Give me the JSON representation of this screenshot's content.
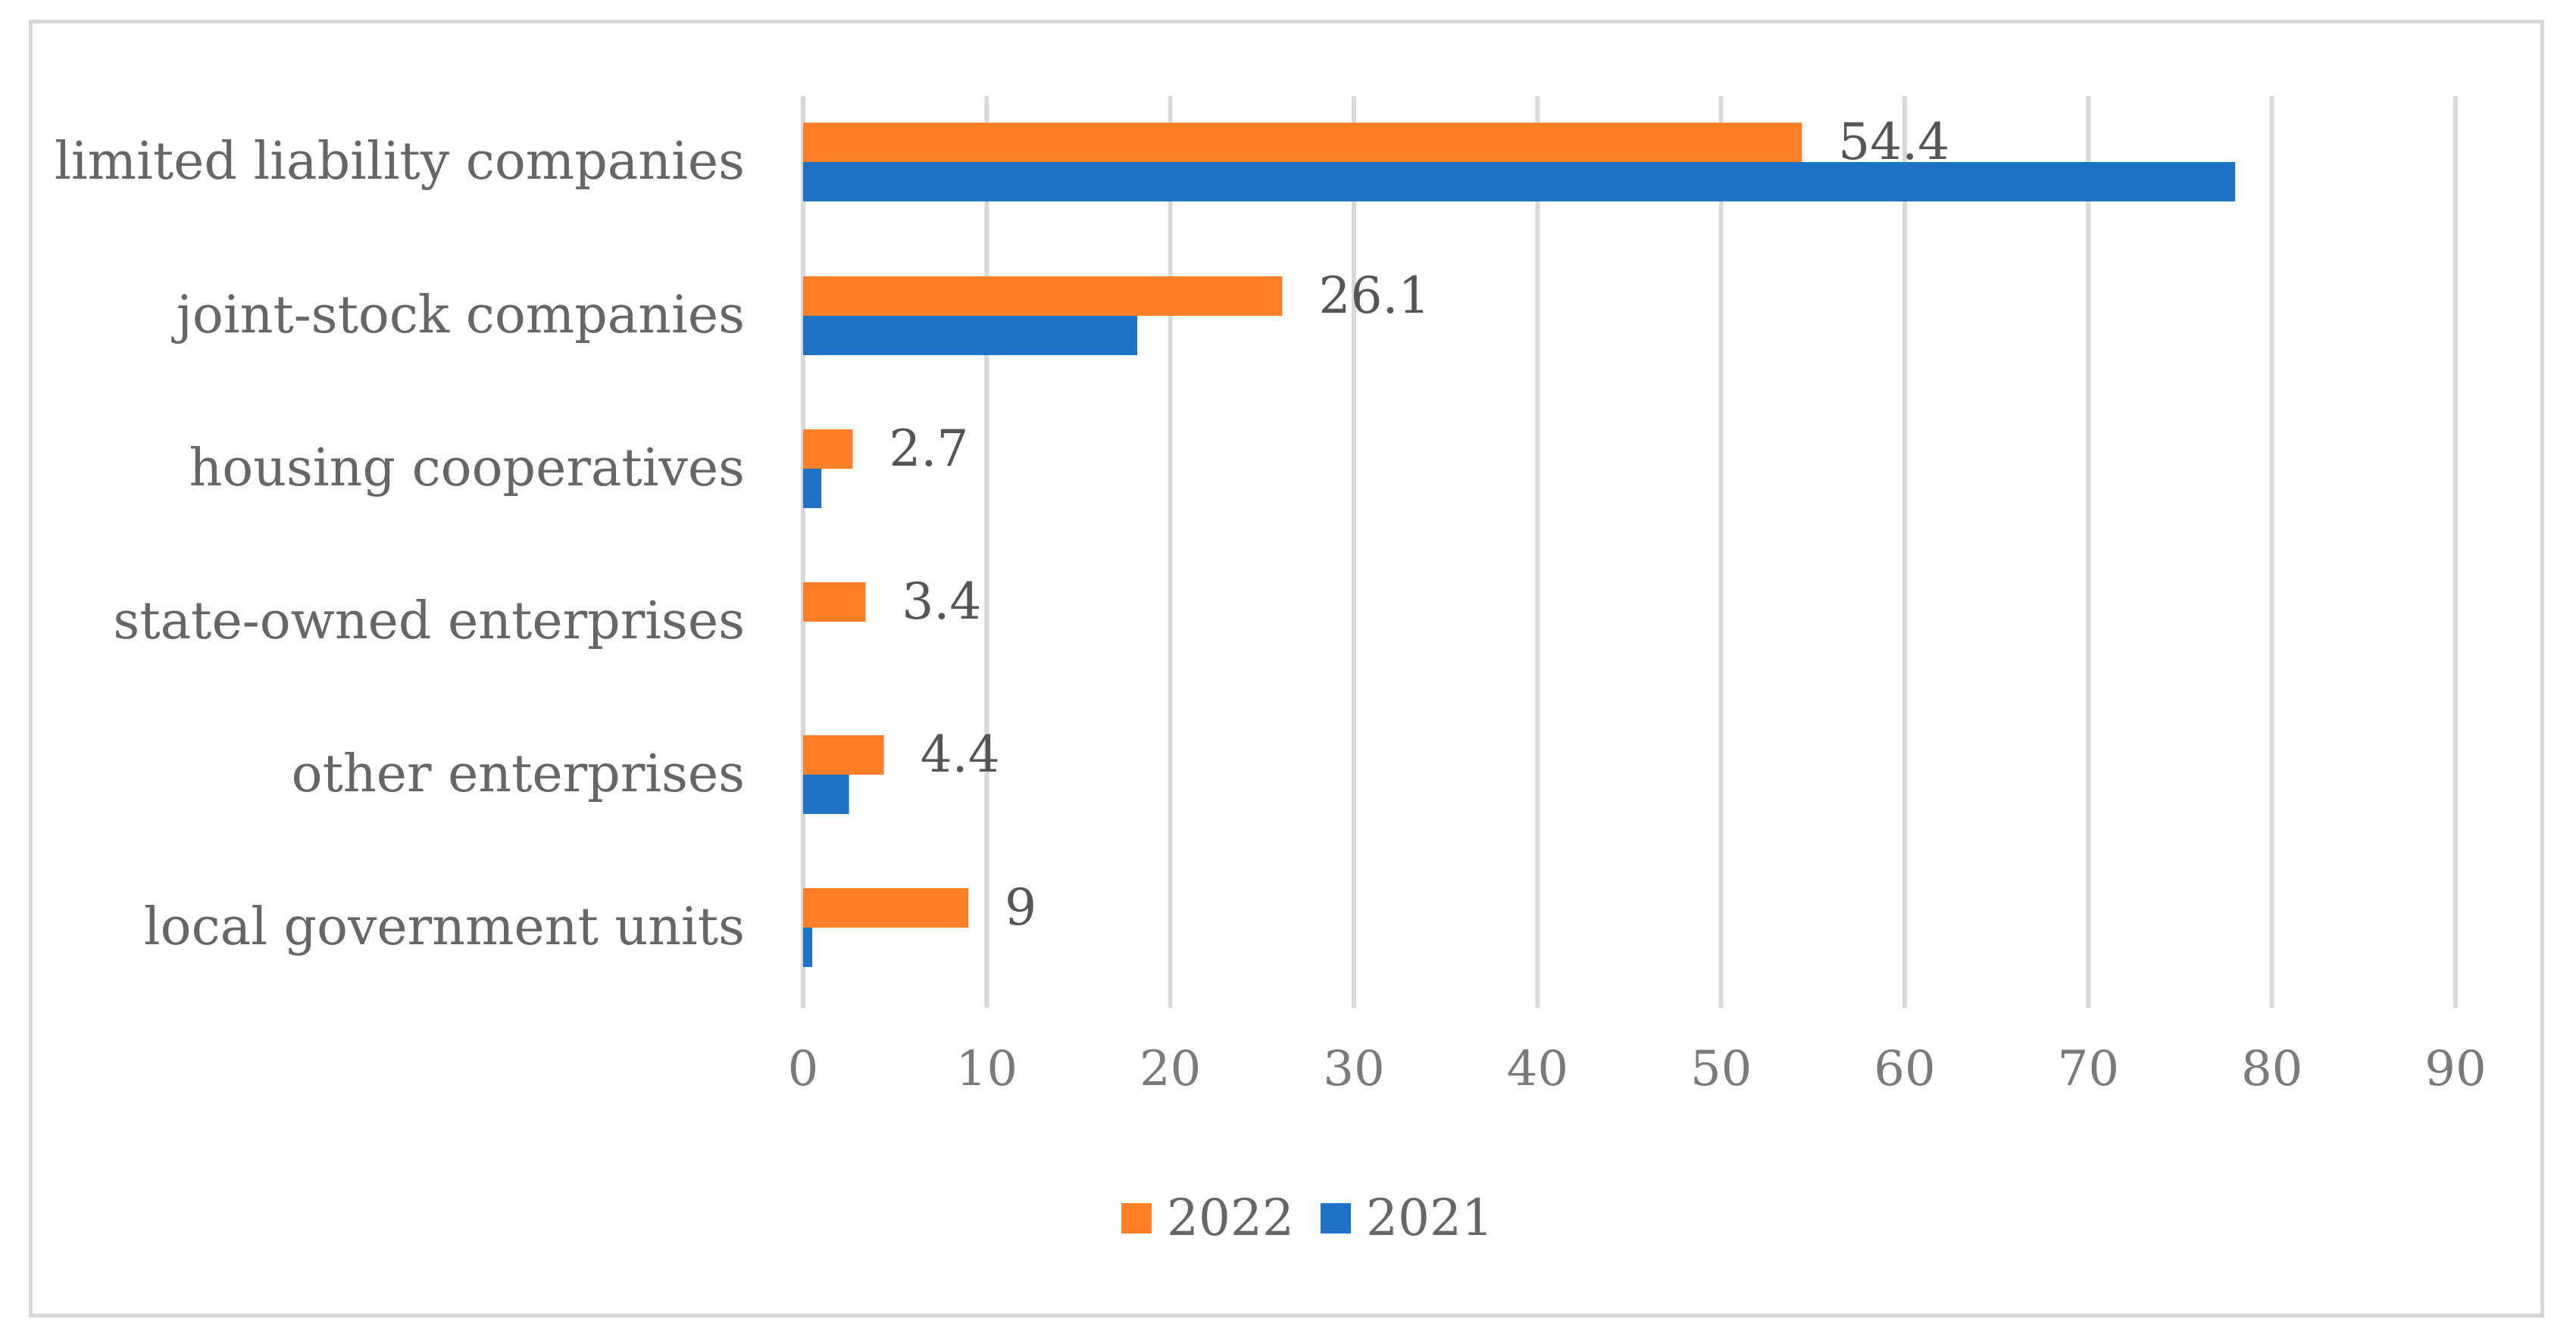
{
  "chart_data": {
    "type": "bar",
    "orientation": "horizontal",
    "title": "",
    "xlabel": "",
    "ylabel": "",
    "xlim": [
      0,
      90
    ],
    "x_ticks": [
      "0",
      "10",
      "20",
      "30",
      "40",
      "50",
      "60",
      "70",
      "80",
      "90"
    ],
    "grid": true,
    "legend_position": "bottom",
    "categories": [
      "limited liability companies",
      "joint-stock companies",
      "housing cooperatives",
      "state-owned enterprises",
      "other enterprises",
      "local government units"
    ],
    "series": [
      {
        "name": "2022",
        "color": "#FF7F27",
        "values": [
          54.4,
          26.1,
          2.7,
          3.4,
          4.4,
          9
        ],
        "labels": [
          "54.4",
          "26.1",
          "2.7",
          "3.4",
          "4.4",
          "9"
        ]
      },
      {
        "name": "2021",
        "color": "#1F73C6",
        "values": [
          78,
          18.2,
          1,
          0,
          2.5,
          0.5
        ]
      }
    ]
  }
}
